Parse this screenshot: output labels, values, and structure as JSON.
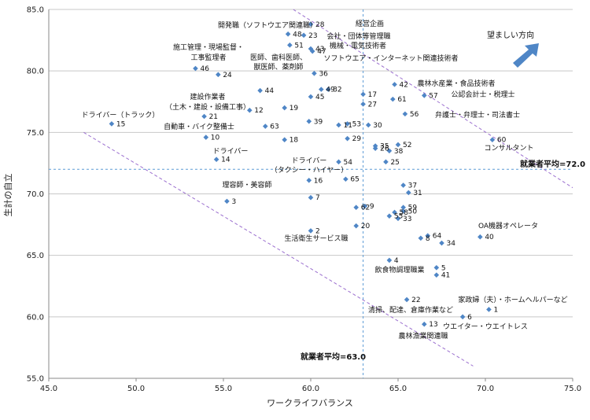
{
  "chart_data": {
    "type": "scatter",
    "xlabel": "ワークライフバランス",
    "ylabel": "生計の自立",
    "xlim": [
      45.0,
      75.0
    ],
    "ylim": [
      55.0,
      85.0
    ],
    "xticks": [
      "45.0",
      "50.0",
      "55.0",
      "60.0",
      "65.0",
      "70.0",
      "75.0"
    ],
    "yticks": [
      "55.0",
      "60.0",
      "65.0",
      "70.0",
      "75.0",
      "80.0",
      "85.0"
    ],
    "grid": "horizontal",
    "marker_color": "#4F86C6",
    "averages": {
      "x": 63.0,
      "x_label": "就業者平均=63.0",
      "y": 72.0,
      "y_label": "就業者平均=72.0"
    },
    "preferred_direction": {
      "label": "望ましい方向",
      "color": "#4F86C6"
    },
    "points": [
      {
        "id": "1",
        "x": 70.2,
        "y": 60.6
      },
      {
        "id": "2",
        "x": 60.0,
        "y": 67.0
      },
      {
        "id": "3",
        "x": 55.2,
        "y": 69.4
      },
      {
        "id": "4",
        "x": 64.5,
        "y": 64.6
      },
      {
        "id": "5",
        "x": 67.2,
        "y": 64.0
      },
      {
        "id": "6",
        "x": 68.7,
        "y": 60.0
      },
      {
        "id": "7",
        "x": 60.0,
        "y": 69.7
      },
      {
        "id": "8",
        "x": 66.3,
        "y": 66.4
      },
      {
        "id": "9",
        "x": 63.1,
        "y": 69.0
      },
      {
        "id": "10",
        "x": 54.0,
        "y": 74.6
      },
      {
        "id": "11",
        "x": 61.6,
        "y": 75.6
      },
      {
        "id": "12",
        "x": 56.5,
        "y": 76.8
      },
      {
        "id": "13",
        "x": 66.5,
        "y": 59.4
      },
      {
        "id": "14",
        "x": 54.6,
        "y": 72.8
      },
      {
        "id": "15",
        "x": 48.6,
        "y": 75.7
      },
      {
        "id": "16",
        "x": 59.9,
        "y": 71.1
      },
      {
        "id": "17",
        "x": 63.0,
        "y": 78.1
      },
      {
        "id": "18",
        "x": 58.5,
        "y": 74.4
      },
      {
        "id": "19",
        "x": 58.5,
        "y": 77.0
      },
      {
        "id": "20",
        "x": 62.6,
        "y": 67.4
      },
      {
        "id": "21",
        "x": 53.9,
        "y": 76.3
      },
      {
        "id": "22",
        "x": 65.5,
        "y": 61.4
      },
      {
        "id": "23",
        "x": 59.6,
        "y": 82.9
      },
      {
        "id": "24",
        "x": 54.7,
        "y": 79.7
      },
      {
        "id": "25",
        "x": 64.3,
        "y": 72.6
      },
      {
        "id": "26",
        "x": 63.7,
        "y": 73.7
      },
      {
        "id": "27",
        "x": 63.0,
        "y": 77.3
      },
      {
        "id": "28",
        "x": 60.0,
        "y": 83.8
      },
      {
        "id": "29",
        "x": 62.1,
        "y": 74.5
      },
      {
        "id": "30",
        "x": 63.3,
        "y": 75.6
      },
      {
        "id": "31",
        "x": 65.6,
        "y": 70.1
      },
      {
        "id": "32",
        "x": 61.0,
        "y": 78.5
      },
      {
        "id": "33",
        "x": 65.0,
        "y": 68.0
      },
      {
        "id": "34",
        "x": 67.5,
        "y": 66.0
      },
      {
        "id": "35",
        "x": 63.7,
        "y": 73.9
      },
      {
        "id": "36",
        "x": 60.2,
        "y": 79.8
      },
      {
        "id": "37",
        "x": 65.3,
        "y": 70.7
      },
      {
        "id": "38",
        "x": 64.5,
        "y": 73.5
      },
      {
        "id": "39",
        "x": 59.9,
        "y": 75.9
      },
      {
        "id": "40",
        "x": 69.7,
        "y": 66.5
      },
      {
        "id": "41",
        "x": 67.2,
        "y": 63.4
      },
      {
        "id": "42",
        "x": 64.8,
        "y": 78.9
      },
      {
        "id": "43",
        "x": 60.0,
        "y": 81.8
      },
      {
        "id": "44",
        "x": 57.1,
        "y": 78.4
      },
      {
        "id": "45",
        "x": 60.0,
        "y": 77.9
      },
      {
        "id": "46",
        "x": 53.4,
        "y": 80.2
      },
      {
        "id": "47",
        "x": 60.1,
        "y": 81.6
      },
      {
        "id": "48",
        "x": 58.7,
        "y": 83.0
      },
      {
        "id": "49",
        "x": 60.6,
        "y": 78.5
      },
      {
        "id": "50",
        "x": 65.3,
        "y": 68.6
      },
      {
        "id": "51",
        "x": 58.8,
        "y": 82.1
      },
      {
        "id": "52",
        "x": 65.0,
        "y": 74.0
      },
      {
        "id": "53",
        "x": 62.1,
        "y": 75.7
      },
      {
        "id": "54",
        "x": 61.6,
        "y": 72.6
      },
      {
        "id": "55",
        "x": 64.5,
        "y": 68.2
      },
      {
        "id": "56",
        "x": 65.4,
        "y": 76.5
      },
      {
        "id": "57",
        "x": 66.5,
        "y": 78.0
      },
      {
        "id": "58",
        "x": 64.8,
        "y": 68.5
      },
      {
        "id": "59",
        "x": 65.3,
        "y": 68.9
      },
      {
        "id": "60",
        "x": 70.4,
        "y": 74.4
      },
      {
        "id": "61",
        "x": 64.7,
        "y": 77.7
      },
      {
        "id": "62",
        "x": 62.6,
        "y": 68.9
      },
      {
        "id": "63",
        "x": 57.4,
        "y": 75.5
      },
      {
        "id": "64",
        "x": 66.7,
        "y": 66.6
      },
      {
        "id": "65",
        "x": 62.0,
        "y": 71.2
      }
    ],
    "annotations": [
      "開発職（ソフトウエア関連職）",
      "経営企画",
      "会社・団体等管理職",
      "機械・電気技術者",
      "ソフトウエア・インターネット関連技術者",
      "施工管理・現場監督・",
      "工事監理者",
      "医師、歯科医師、",
      "獣医師、薬剤師",
      "農林水産業・食品技術者",
      "公認会計士・税理士",
      "弁護士・弁理士・司法書士",
      "建設作業者",
      "（土木・建設・設備工事）",
      "ドライバー（トラック）",
      "自動車・バイク整備士",
      "コンサルタント",
      "ドライバー",
      "ドライバー",
      "（タクシー・ハイヤー）",
      "理容師・美容師",
      "OA機器オペレータ",
      "生活衛生サービス職",
      "飲食物調理職業",
      "家政婦（夫）・ホームヘルパーなど",
      "清掃、配達、倉庫作業など",
      "ウエイター・ウエイトレス",
      "農林漁業関連職"
    ]
  }
}
